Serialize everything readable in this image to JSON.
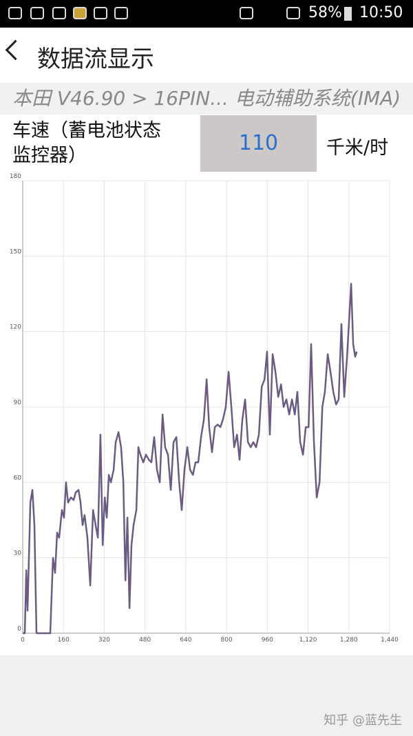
{
  "status_bar": {
    "battery": "58%",
    "time": "10:50"
  },
  "header": {
    "title": "数据流显示"
  },
  "breadcrumb": "本田 V46.90 > 16PIN... 电动辅助系统(IMA)",
  "sensor": {
    "label_lines": [
      "车速（蓄电池状态",
      "监控器）"
    ],
    "value": "110",
    "unit": "千米/时"
  },
  "watermark": "知乎 @蓝先生",
  "chart_data": {
    "type": "line",
    "color": "#6b5b83",
    "grid": true,
    "xlim": [
      0,
      1440
    ],
    "ylim": [
      0,
      180
    ],
    "xticks": [
      0,
      160,
      320,
      480,
      640,
      800,
      960,
      {
        "value": 1120,
        "label": "1,120"
      },
      {
        "value": 1280,
        "label": "1,280"
      },
      {
        "value": 1440,
        "label": "1,440"
      }
    ],
    "yticks": [
      0,
      30,
      60,
      90,
      120,
      150,
      180
    ],
    "x": [
      0,
      8,
      14,
      19,
      30,
      38,
      46,
      54,
      108,
      119,
      127,
      135,
      143,
      154,
      162,
      170,
      178,
      189,
      200,
      208,
      219,
      227,
      235,
      243,
      254,
      265,
      268,
      276,
      286,
      295,
      305,
      314,
      322,
      330,
      338,
      346,
      357,
      365,
      376,
      386,
      395,
      403,
      411,
      419,
      427,
      435,
      446,
      454,
      462,
      473,
      484,
      495,
      505,
      516,
      527,
      538,
      549,
      559,
      570,
      581,
      592,
      603,
      614,
      624,
      635,
      646,
      657,
      668,
      678,
      689,
      700,
      711,
      722,
      732,
      743,
      754,
      765,
      776,
      786,
      797,
      808,
      819,
      830,
      841,
      851,
      862,
      873,
      884,
      895,
      905,
      916,
      927,
      938,
      949,
      959,
      970,
      981,
      992,
      1003,
      1014,
      1024,
      1035,
      1046,
      1057,
      1068,
      1078,
      1089,
      1100,
      1111,
      1122,
      1132,
      1143,
      1154,
      1165,
      1176,
      1186,
      1197,
      1208,
      1219,
      1230,
      1240,
      1251,
      1262,
      1273,
      1284,
      1289,
      1297,
      1305,
      1311
    ],
    "values": [
      0,
      0,
      25,
      9,
      52,
      57,
      43,
      0,
      0,
      30,
      24,
      40,
      38,
      49,
      46,
      60,
      52,
      54,
      53,
      56,
      57,
      52,
      43,
      47,
      38,
      19,
      27,
      49,
      43,
      38,
      79,
      35,
      54,
      46,
      63,
      60,
      65,
      76,
      80,
      74,
      60,
      21,
      46,
      10,
      35,
      43,
      49,
      74,
      71,
      68,
      71,
      69,
      68,
      78,
      65,
      60,
      87,
      74,
      71,
      57,
      76,
      78,
      60,
      49,
      65,
      74,
      65,
      63,
      68,
      68,
      78,
      85,
      101,
      82,
      72,
      82,
      83,
      82,
      85,
      90,
      104,
      90,
      74,
      79,
      69,
      85,
      93,
      76,
      74,
      76,
      74,
      79,
      98,
      101,
      112,
      79,
      111,
      104,
      94,
      99,
      90,
      93,
      87,
      93,
      87,
      96,
      76,
      71,
      82,
      82,
      115,
      76,
      54,
      60,
      90,
      96,
      111,
      104,
      96,
      91,
      93,
      123,
      94,
      110,
      130,
      139,
      115,
      110,
      112
    ]
  }
}
